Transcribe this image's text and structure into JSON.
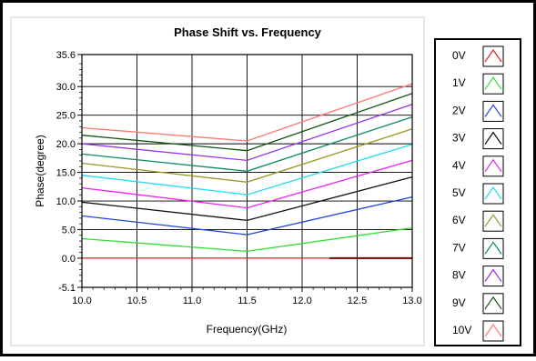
{
  "chart_data": {
    "type": "line",
    "title": "Phase Shift vs. Frequency",
    "xlabel": "Frequency(GHz)",
    "ylabel": "Phase(degree)",
    "xlim": [
      10.0,
      13.0
    ],
    "ylim": [
      -5.1,
      35.6
    ],
    "x_ticks": [
      "10.0",
      "10.5",
      "11.0",
      "11.5",
      "12.0",
      "12.5",
      "13.0"
    ],
    "y_ticks": [
      {
        "value": 35.6,
        "label": "35.6"
      },
      {
        "value": 30.0,
        "label": "30.0"
      },
      {
        "value": 25.0,
        "label": "25.0"
      },
      {
        "value": 20.0,
        "label": "20.0"
      },
      {
        "value": 15.0,
        "label": "15.0"
      },
      {
        "value": 10.0,
        "label": "10.0"
      },
      {
        "value": 5.0,
        "label": "5.0"
      },
      {
        "value": 0.0,
        "label": "0.0"
      },
      {
        "value": -5.1,
        "label": "-5.1"
      }
    ],
    "grid": true,
    "legend_position": "right",
    "x": [
      10.0,
      11.5,
      13.0
    ],
    "series": [
      {
        "name": "0V",
        "color": "#e02020",
        "values": [
          0.0,
          0.0,
          0.0
        ]
      },
      {
        "name": "1V",
        "color": "#33dd33",
        "values": [
          3.4,
          1.2,
          5.3
        ]
      },
      {
        "name": "2V",
        "color": "#2244dd",
        "values": [
          7.4,
          4.1,
          10.7
        ]
      },
      {
        "name": "3V",
        "color": "#111111",
        "values": [
          9.8,
          6.6,
          14.2
        ]
      },
      {
        "name": "4V",
        "color": "#ee22ee",
        "values": [
          12.3,
          8.8,
          17.1
        ]
      },
      {
        "name": "5V",
        "color": "#22ddee",
        "values": [
          14.5,
          11.1,
          19.9
        ]
      },
      {
        "name": "6V",
        "color": "#999922",
        "values": [
          16.6,
          13.3,
          22.6
        ]
      },
      {
        "name": "7V",
        "color": "#118866",
        "values": [
          18.2,
          15.2,
          24.7
        ]
      },
      {
        "name": "8V",
        "color": "#9933ee",
        "values": [
          20.0,
          17.1,
          26.9
        ]
      },
      {
        "name": "9V",
        "color": "#115511",
        "values": [
          21.5,
          18.8,
          28.8
        ]
      },
      {
        "name": "10V",
        "color": "#ff7777",
        "values": [
          22.8,
          20.5,
          30.5
        ]
      }
    ]
  }
}
